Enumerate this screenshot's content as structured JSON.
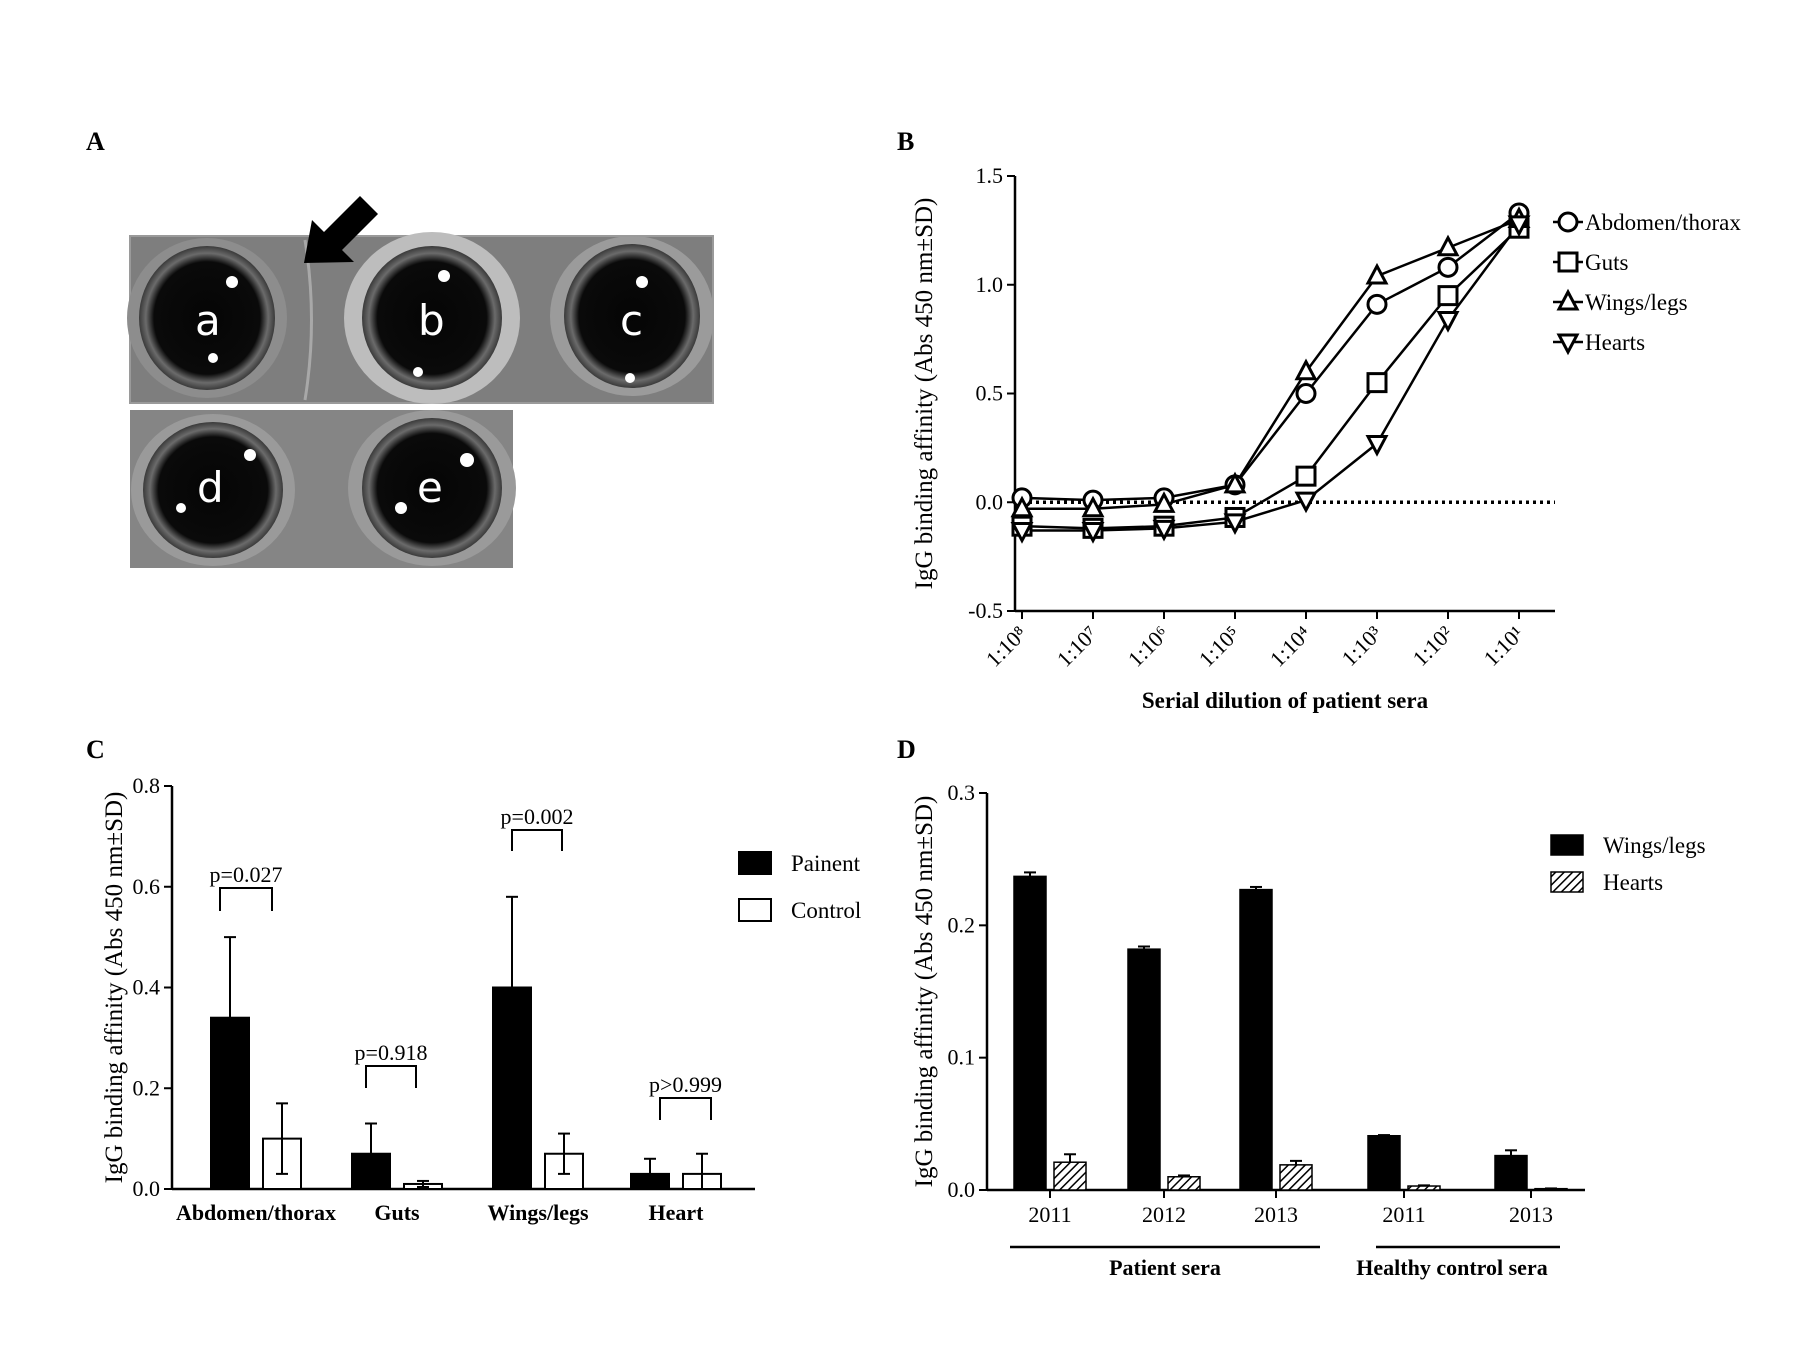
{
  "figure": {
    "panel_letters": [
      "A",
      "B",
      "C",
      "D"
    ],
    "photo": {
      "well_labels": [
        "a",
        "b",
        "c",
        "d",
        "e"
      ],
      "arrow_icon": "arrow-down-left-icon"
    }
  },
  "chart_data": [
    {
      "panel": "B",
      "type": "line",
      "title": "",
      "xlabel": "Serial dilution of patient sera",
      "ylabel": "IgG binding affinity (Abs 450 nm±SD)",
      "categories": [
        "1:10⁸",
        "1:10⁷",
        "1:10⁶",
        "1:10⁵",
        "1:10⁴",
        "1:10³",
        "1:10²",
        "1:10¹"
      ],
      "ylim": [
        -0.5,
        1.5
      ],
      "yticks": [
        "-0.5",
        "0.0",
        "0.5",
        "1.0",
        "1.5"
      ],
      "reference_line": 0.0,
      "legend_position": "right",
      "series": [
        {
          "name": "Abdomen/thorax",
          "marker": "circle",
          "values": [
            0.02,
            0.01,
            0.02,
            0.08,
            0.5,
            0.91,
            1.08,
            1.33
          ]
        },
        {
          "name": "Guts",
          "marker": "square",
          "values": [
            -0.11,
            -0.12,
            -0.11,
            -0.07,
            0.12,
            0.55,
            0.95,
            1.26
          ]
        },
        {
          "name": "Wings/legs",
          "marker": "triangle-up",
          "values": [
            -0.03,
            -0.03,
            -0.01,
            0.08,
            0.6,
            1.04,
            1.17,
            1.3
          ]
        },
        {
          "name": "Hearts",
          "marker": "triangle-down",
          "values": [
            -0.13,
            -0.13,
            -0.12,
            -0.09,
            0.01,
            0.27,
            0.84,
            1.28
          ]
        }
      ]
    },
    {
      "panel": "C",
      "type": "bar",
      "title": "",
      "xlabel": "",
      "ylabel": "IgG binding affinity (Abs 450 nm±SD)",
      "categories": [
        "Abdomen/thorax",
        "Guts",
        "Wings/legs",
        "Heart"
      ],
      "ylim": [
        0.0,
        0.8
      ],
      "yticks": [
        "0.0",
        "0.2",
        "0.4",
        "0.6",
        "0.8"
      ],
      "legend_position": "right",
      "series": [
        {
          "name": "Painent",
          "fill": "#000000",
          "values": [
            0.34,
            0.07,
            0.4,
            0.03
          ],
          "sd": [
            0.16,
            0.06,
            0.18,
            0.03
          ]
        },
        {
          "name": "Control",
          "fill": "#ffffff",
          "values": [
            0.1,
            0.01,
            0.07,
            0.03
          ],
          "sd": [
            0.07,
            0.006,
            0.04,
            0.04
          ]
        }
      ],
      "annotations": [
        "p=0.027",
        "p=0.918",
        "p=0.002",
        "p>0.999"
      ]
    },
    {
      "panel": "D",
      "type": "bar",
      "title": "",
      "xlabel": "",
      "ylabel": "IgG binding affinity (Abs 450 nm±SD)",
      "categories": [
        "2011",
        "2012",
        "2013",
        "2011",
        "2013"
      ],
      "groups": [
        {
          "label": "Patient sera",
          "categories": [
            0,
            1,
            2
          ]
        },
        {
          "label": "Healthy control sera",
          "categories": [
            3,
            4
          ]
        }
      ],
      "ylim": [
        0.0,
        0.3
      ],
      "yticks": [
        "0.0",
        "0.1",
        "0.2",
        "0.3"
      ],
      "legend_position": "top-right",
      "series": [
        {
          "name": "Wings/legs",
          "fill": "#000000",
          "values": [
            0.237,
            0.182,
            0.227,
            0.041,
            0.026
          ],
          "sd": [
            0.003,
            0.002,
            0.002,
            0.0005,
            0.004
          ]
        },
        {
          "name": "Hearts",
          "fill": "hatched",
          "values": [
            0.021,
            0.01,
            0.019,
            0.003,
            0.001
          ],
          "sd": [
            0.006,
            0.001,
            0.003,
            0.0005,
            0.0002
          ]
        }
      ]
    }
  ]
}
